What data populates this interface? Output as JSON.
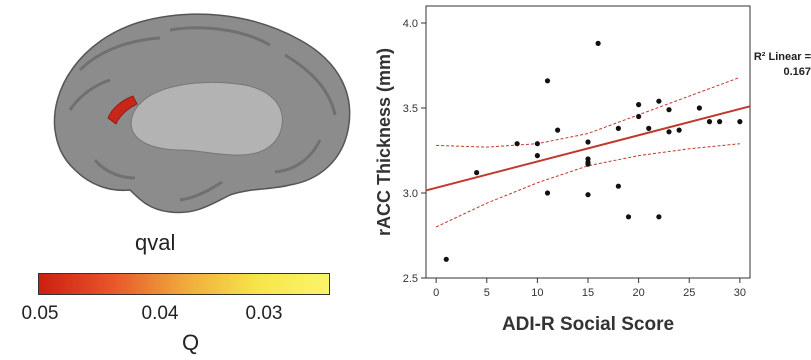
{
  "brain": {
    "colorbar_title": "qval",
    "colorbar_ticks": [
      "0.05",
      "0.04",
      "0.03"
    ],
    "colorbar_label": "Q",
    "colorbar_colors": [
      "#cc1f12",
      "#e8552a",
      "#f0a93c",
      "#f7e44a",
      "#fbf56a"
    ],
    "highlight_color": "#c8261a",
    "cortex_color": "#8c8c8c"
  },
  "chart_data": {
    "type": "scatter",
    "xlabel": "ADI-R Social Score",
    "ylabel": "rACC Thickness (mm)",
    "xlim": [
      -1,
      31
    ],
    "ylim": [
      2.5,
      4.1
    ],
    "xticks": [
      "0",
      "5",
      "10",
      "15",
      "20",
      "25",
      "30"
    ],
    "yticks": [
      "2.5",
      "3.0",
      "3.5",
      "4.0"
    ],
    "points": [
      [
        1,
        2.61
      ],
      [
        4,
        3.12
      ],
      [
        8,
        3.29
      ],
      [
        10,
        3.22
      ],
      [
        10,
        3.29
      ],
      [
        11,
        3.66
      ],
      [
        11,
        3.0
      ],
      [
        12,
        3.37
      ],
      [
        15,
        3.3
      ],
      [
        15,
        3.2
      ],
      [
        15,
        3.18
      ],
      [
        15,
        3.17
      ],
      [
        15,
        2.99
      ],
      [
        16,
        3.88
      ],
      [
        18,
        3.38
      ],
      [
        18,
        3.04
      ],
      [
        19,
        2.86
      ],
      [
        20,
        3.52
      ],
      [
        20,
        3.45
      ],
      [
        21,
        3.38
      ],
      [
        22,
        3.54
      ],
      [
        22,
        2.86
      ],
      [
        23,
        3.49
      ],
      [
        23,
        3.36
      ],
      [
        24,
        3.37
      ],
      [
        26,
        3.5
      ],
      [
        27,
        3.42
      ],
      [
        28,
        3.42
      ],
      [
        30,
        3.42
      ]
    ],
    "fit_line": {
      "y_at_xmin": 3.015,
      "y_at_xmax": 3.51
    },
    "ci_upper": [
      [
        0,
        3.28
      ],
      [
        5,
        3.27
      ],
      [
        10,
        3.29
      ],
      [
        15,
        3.35
      ],
      [
        20,
        3.46
      ],
      [
        25,
        3.57
      ],
      [
        30,
        3.68
      ]
    ],
    "ci_lower": [
      [
        0,
        2.8
      ],
      [
        5,
        2.94
      ],
      [
        10,
        3.06
      ],
      [
        15,
        3.16
      ],
      [
        20,
        3.22
      ],
      [
        25,
        3.26
      ],
      [
        30,
        3.29
      ]
    ],
    "r2_label": "R² Linear =",
    "r2_value": "0.167",
    "line_color": "#c0392b",
    "grid": false
  }
}
